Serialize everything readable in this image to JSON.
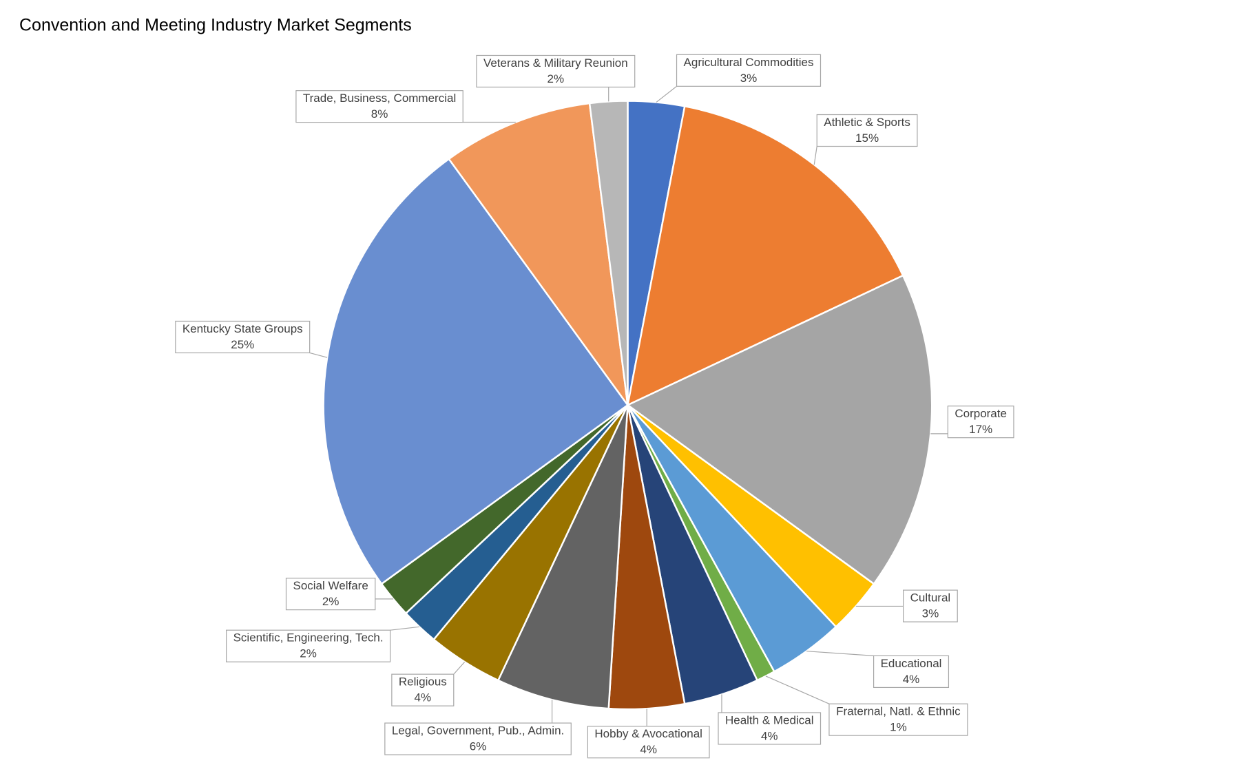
{
  "chart_data": {
    "type": "pie",
    "title": "Convention and Meeting Industry Market Segments",
    "categories": [
      "Agricultural Commodities",
      "Athletic & Sports",
      "Corporate",
      "Cultural",
      "Educational",
      "Fraternal, Natl. & Ethnic",
      "Health & Medical",
      "Hobby & Avocational",
      "Legal, Government, Pub., Admin.",
      "Religious",
      "Scientific, Engineering, Tech.",
      "Social Welfare",
      "Kentucky State Groups",
      "Trade, Business, Commercial",
      "Veterans & Military Reunion"
    ],
    "values": [
      3,
      15,
      17,
      3,
      4,
      1,
      4,
      4,
      6,
      4,
      2,
      2,
      25,
      8,
      2
    ],
    "value_labels": [
      "3%",
      "15%",
      "17%",
      "3%",
      "4%",
      "1%",
      "4%",
      "4%",
      "6%",
      "4%",
      "2%",
      "2%",
      "25%",
      "8%",
      "2%"
    ],
    "colors": [
      "#4472c4",
      "#ed7d31",
      "#a5a5a5",
      "#ffc000",
      "#5b9bd5",
      "#70ad47",
      "#264478",
      "#9e480e",
      "#636363",
      "#997300",
      "#255e91",
      "#43682b",
      "#698ed0",
      "#f1975a",
      "#b7b7b7"
    ]
  }
}
